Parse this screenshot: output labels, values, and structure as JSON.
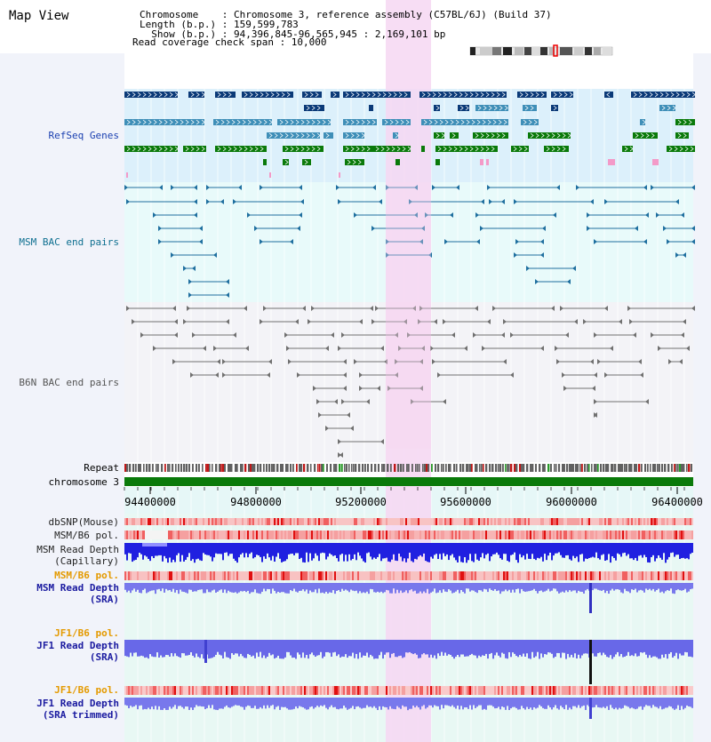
{
  "title": "Map View",
  "info": {
    "chromosome_line": "Chromosome    : Chromosome 3, reference assembly (C57BL/6J) (Build 37)",
    "length_line": "Length (b.p.) : 159,599,783",
    "show_line": "  Show (b.p.) : 94,396,845-96,565,945 : 2,169,101 bp",
    "span_line": "Read coverage check span : 10,000"
  },
  "tracks": {
    "refseq": "RefSeq Genes",
    "msm_bac": "MSM BAC end pairs",
    "b6n_bac": "B6N BAC end pairs",
    "repeat": "Repeat",
    "chromosome": "chromosome 3",
    "dbsnp": "dbSNP(Mouse)",
    "msm_b6_pol_1": "MSM/B6 pol.",
    "msm_depth_cap_1": "MSM Read Depth",
    "msm_depth_cap_2": "(Capillary)",
    "msm_b6_pol_2": "MSM/B6 pol.",
    "msm_depth_sra_1": "MSM Read Depth",
    "msm_depth_sra_2": "(SRA)",
    "jf1_b6_pol_1": "JF1/B6 pol.",
    "jf1_depth_sra_1": "JF1 Read Depth",
    "jf1_depth_sra_2": "(SRA)",
    "jf1_b6_pol_2": "JF1/B6 pol.",
    "jf1_depth_trim_1": "JF1 Read Depth",
    "jf1_depth_trim_2": "(SRA trimmed)"
  },
  "axis": {
    "ticks": [
      "94400000",
      "94800000",
      "95200000",
      "95600000",
      "96000000",
      "96400000"
    ]
  },
  "colors": {
    "refseq_dark": "#0b3a78",
    "refseq_mid": "#3f8fb8",
    "refseq_green": "#0a7a0a",
    "msm_bac": "#1f6f9f",
    "b6n_bac": "#707070",
    "highlight": "#f6d7f2",
    "label_blue": "#1a3fb0",
    "label_teal": "#0e6f90",
    "label_gray": "#555555",
    "label_orange": "#e49a00",
    "label_navy": "#1a1aa0"
  }
}
